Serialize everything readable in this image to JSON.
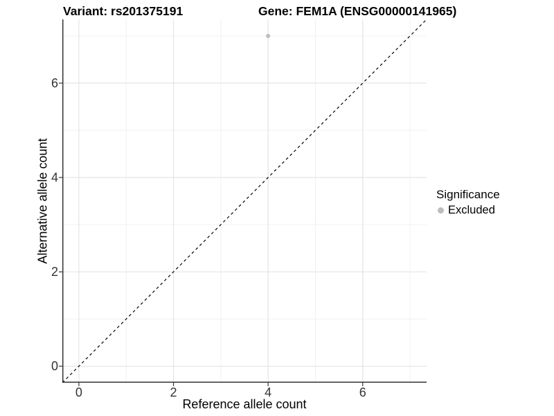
{
  "title": {
    "variant": "Variant: rs201375191",
    "gene": "Gene: FEM1A (ENSG00000141965)"
  },
  "axes": {
    "x": {
      "label": "Reference allele count",
      "ticks": [
        0,
        2,
        4,
        6
      ]
    },
    "y": {
      "label": "Alternative allele count",
      "ticks": [
        0,
        2,
        4,
        6
      ]
    }
  },
  "legend": {
    "title": "Significance",
    "items": [
      {
        "label": "Excluded",
        "color": "#bdbdbd"
      }
    ]
  },
  "chart_data": {
    "type": "scatter",
    "title": "Variant: rs201375191 | Gene: FEM1A (ENSG00000141965)",
    "xlabel": "Reference allele count",
    "ylabel": "Alternative allele count",
    "xlim": [
      -0.35,
      7.35
    ],
    "ylim": [
      -0.35,
      7.35
    ],
    "grid": {
      "major": [
        0,
        2,
        4,
        6
      ],
      "minor": [
        1,
        3,
        5,
        7
      ],
      "major_color": "#e4e4e4",
      "minor_color": "#f1f1f1"
    },
    "series": [
      {
        "name": "Excluded",
        "color": "#bdbdbd",
        "points": [
          {
            "x": 4,
            "y": 7
          }
        ]
      }
    ],
    "reference_line": {
      "type": "identity",
      "style": "dashed",
      "color": "#000000"
    },
    "legend_position": "right",
    "axis_color": "#333333",
    "tick_label_color": "#333333"
  }
}
